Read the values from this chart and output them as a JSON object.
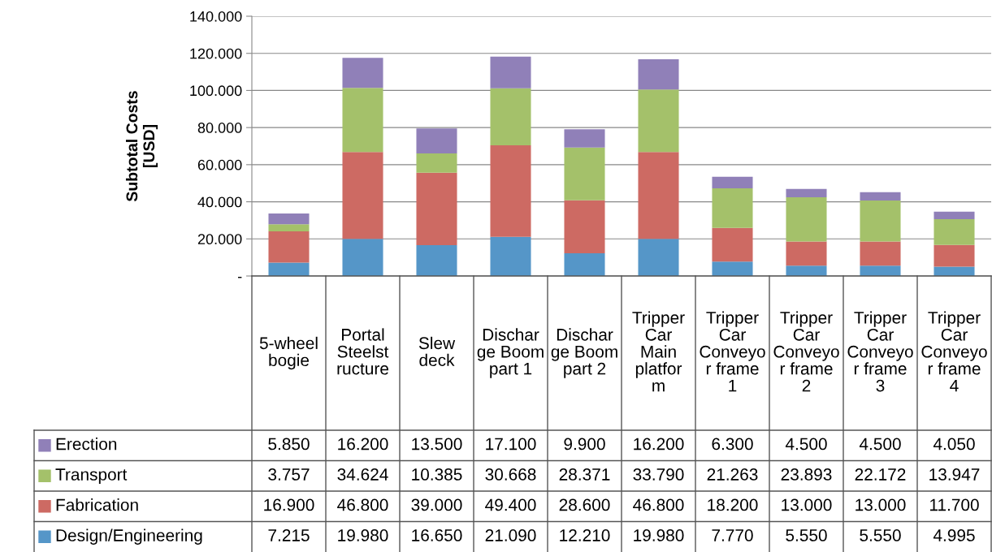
{
  "chart_data": {
    "type": "bar",
    "stacked": true,
    "ylabel": "Subtotal Costs\n[USD]",
    "categories": [
      "5-wheel bogie",
      "Portal Steelstructure",
      "Slew deck",
      "Discharge Boom part 1",
      "Discharge Boom part 2",
      "Tripper Car Main platform",
      "Tripper Car Conveyor frame 1",
      "Tripper Car Conveyor frame 2",
      "Tripper Car Conveyor frame 3",
      "Tripper Car Conveyor frame 4"
    ],
    "series": [
      {
        "name": "Design/Engineering",
        "color": "#5596c8",
        "values": [
          7215,
          19980,
          16650,
          21090,
          12210,
          19980,
          7770,
          5550,
          5550,
          4995
        ],
        "value_labels": [
          "7.215",
          "19.980",
          "16.650",
          "21.090",
          "12.210",
          "19.980",
          "7.770",
          "5.550",
          "5.550",
          "4.995"
        ]
      },
      {
        "name": "Fabrication",
        "color": "#cd6a63",
        "values": [
          16900,
          46800,
          39000,
          49400,
          28600,
          46800,
          18200,
          13000,
          13000,
          11700
        ],
        "value_labels": [
          "16.900",
          "46.800",
          "39.000",
          "49.400",
          "28.600",
          "46.800",
          "18.200",
          "13.000",
          "13.000",
          "11.700"
        ]
      },
      {
        "name": "Transport",
        "color": "#a4c16a",
        "values": [
          3757,
          34624,
          10385,
          30668,
          28371,
          33790,
          21263,
          23893,
          22172,
          13947
        ],
        "value_labels": [
          "3.757",
          "34.624",
          "10.385",
          "30.668",
          "28.371",
          "33.790",
          "21.263",
          "23.893",
          "22.172",
          "13.947"
        ]
      },
      {
        "name": "Erection",
        "color": "#9080b8",
        "values": [
          5850,
          16200,
          13500,
          17100,
          9900,
          16200,
          6300,
          4500,
          4500,
          4050
        ],
        "value_labels": [
          "5.850",
          "16.200",
          "13.500",
          "17.100",
          "9.900",
          "16.200",
          "6.300",
          "4.500",
          "4.500",
          "4.050"
        ]
      }
    ],
    "ylim": [
      0,
      140000
    ],
    "yticks": [
      {
        "value": 0,
        "label": "-"
      },
      {
        "value": 20000,
        "label": "20.000"
      },
      {
        "value": 40000,
        "label": "40.000"
      },
      {
        "value": 60000,
        "label": "60.000"
      },
      {
        "value": 80000,
        "label": "80.000"
      },
      {
        "value": 100000,
        "label": "100.000"
      },
      {
        "value": 120000,
        "label": "120.000"
      },
      {
        "value": 140000,
        "label": "140.000"
      }
    ],
    "grid": "y",
    "legend": "bottom left"
  }
}
